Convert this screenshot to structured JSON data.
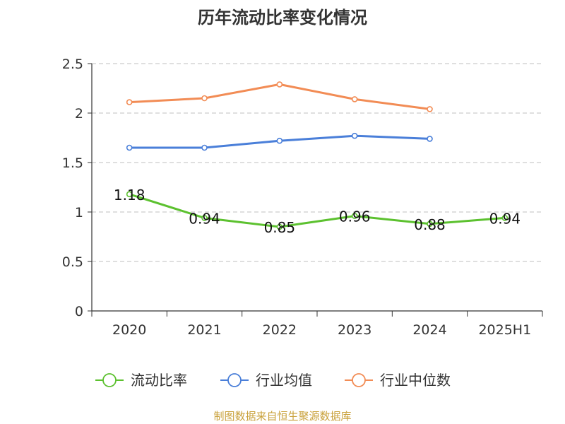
{
  "chart_data": {
    "type": "line",
    "title": "历年流动比率变化情况",
    "categories": [
      "2020",
      "2021",
      "2022",
      "2023",
      "2024",
      "2025H1"
    ],
    "ylim": [
      0,
      2.5
    ],
    "yticks": [
      "0",
      "0.5",
      "1",
      "1.5",
      "2",
      "2.5"
    ],
    "grid": true,
    "legend_position": "bottom",
    "series": [
      {
        "name": "流动比率",
        "color": "#5cc12f",
        "values": [
          1.18,
          0.94,
          0.85,
          0.96,
          0.88,
          0.94
        ],
        "labels": [
          "1.18",
          "0.94",
          "0.85",
          "0.96",
          "0.88",
          "0.94"
        ]
      },
      {
        "name": "行业均值",
        "color": "#4a7fd9",
        "values": [
          1.65,
          1.65,
          1.72,
          1.77,
          1.74,
          null
        ]
      },
      {
        "name": "行业中位数",
        "color": "#f28c55",
        "values": [
          2.11,
          2.15,
          2.29,
          2.14,
          2.04,
          null
        ]
      }
    ],
    "source": "制图数据来自恒生聚源数据库"
  }
}
